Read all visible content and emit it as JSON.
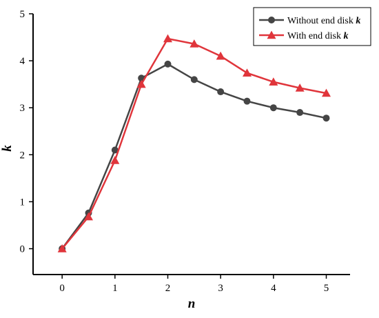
{
  "chart_data": {
    "type": "line",
    "xlabel": "n",
    "ylabel": "k",
    "xlim": [
      -0.55,
      5.45
    ],
    "ylim": [
      -0.55,
      5
    ],
    "xticks": [
      0,
      1,
      2,
      3,
      4,
      5
    ],
    "yticks": [
      0,
      1,
      2,
      3,
      4,
      5
    ],
    "legend_position": "top-right",
    "series": [
      {
        "name": "Without end disk",
        "name_symbol": "k",
        "color": "#454545",
        "marker": "circle",
        "x": [
          0,
          0.5,
          1,
          1.5,
          2,
          2.5,
          3,
          3.5,
          4,
          4.5,
          5
        ],
        "y": [
          0,
          0.76,
          2.1,
          3.63,
          3.93,
          3.6,
          3.34,
          3.14,
          3.0,
          2.9,
          2.78
        ]
      },
      {
        "name": "With end disk",
        "name_symbol": "k",
        "color": "#e0353b",
        "marker": "triangle",
        "x": [
          0,
          0.5,
          1,
          1.5,
          2,
          2.5,
          3,
          3.5,
          4,
          4.5,
          5
        ],
        "y": [
          0,
          0.68,
          1.88,
          3.5,
          4.47,
          4.36,
          4.1,
          3.74,
          3.55,
          3.42,
          3.31
        ]
      }
    ]
  }
}
